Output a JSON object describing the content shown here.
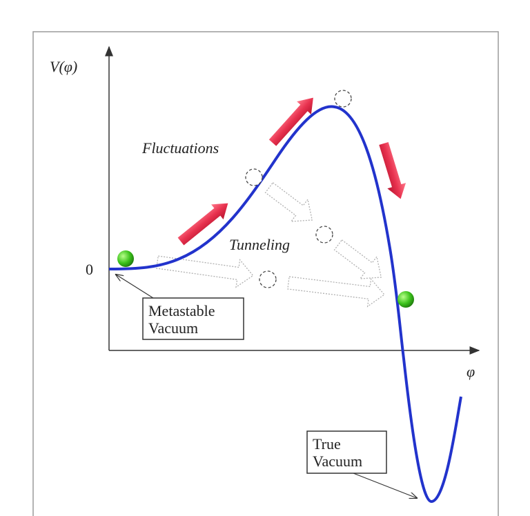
{
  "axes": {
    "y_label": "V(φ)",
    "x_label": "φ",
    "zero_label": "0"
  },
  "annotations": {
    "fluctuations": "Fluctuations",
    "tunneling": "Tunneling"
  },
  "boxes": [
    {
      "lines": [
        "Metastable",
        "Vacuum"
      ]
    },
    {
      "lines": [
        "True",
        "Vacuum"
      ]
    }
  ]
}
